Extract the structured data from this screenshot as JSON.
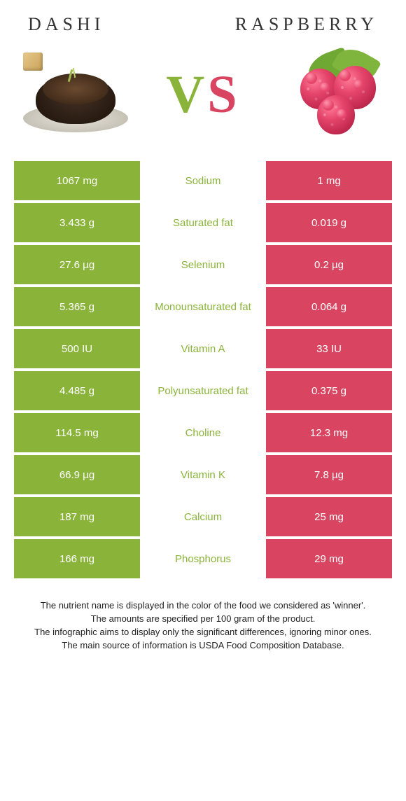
{
  "colors": {
    "dashi": "#8ab33a",
    "raspberry": "#d94560",
    "text_dark": "#333333",
    "row_gap_bg": "#ffffff"
  },
  "titles": {
    "left": "Dashi",
    "right": "Raspberry"
  },
  "vs": {
    "v": "V",
    "s": "S"
  },
  "illustrations": {
    "left_name": "dashi-bowl",
    "right_name": "raspberries"
  },
  "table": {
    "left_bg": "#8ab33a",
    "right_bg": "#d94560",
    "rows": [
      {
        "left": "1067 mg",
        "label": "Sodium",
        "right": "1 mg",
        "winner": "dashi"
      },
      {
        "left": "3.433 g",
        "label": "Saturated fat",
        "right": "0.019 g",
        "winner": "dashi"
      },
      {
        "left": "27.6 µg",
        "label": "Selenium",
        "right": "0.2 µg",
        "winner": "dashi"
      },
      {
        "left": "5.365 g",
        "label": "Monounsaturated fat",
        "right": "0.064 g",
        "winner": "dashi"
      },
      {
        "left": "500 IU",
        "label": "Vitamin A",
        "right": "33 IU",
        "winner": "dashi"
      },
      {
        "left": "4.485 g",
        "label": "Polyunsaturated fat",
        "right": "0.375 g",
        "winner": "dashi"
      },
      {
        "left": "114.5 mg",
        "label": "Choline",
        "right": "12.3 mg",
        "winner": "dashi"
      },
      {
        "left": "66.9 µg",
        "label": "Vitamin K",
        "right": "7.8 µg",
        "winner": "dashi"
      },
      {
        "left": "187 mg",
        "label": "Calcium",
        "right": "25 mg",
        "winner": "dashi"
      },
      {
        "left": "166 mg",
        "label": "Phosphorus",
        "right": "29 mg",
        "winner": "dashi"
      }
    ]
  },
  "footer": {
    "line1": "The nutrient name is displayed in the color of the food we considered as 'winner'.",
    "line2": "The amounts are specified per 100 gram of the product.",
    "line3": "The infographic aims to display only the significant differences, ignoring minor ones.",
    "line4": "The main source of information is USDA Food Composition Database."
  }
}
